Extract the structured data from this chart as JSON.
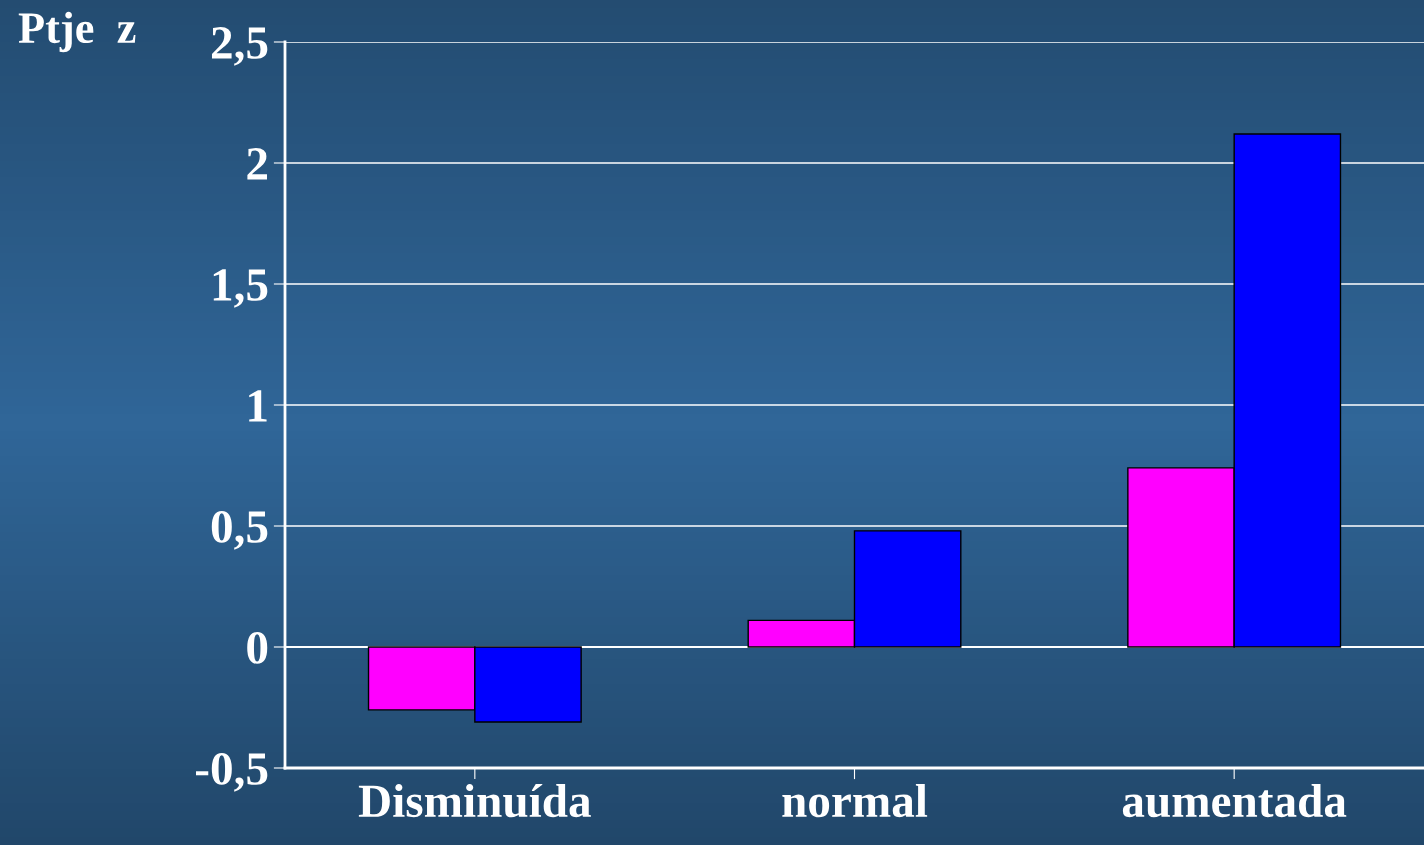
{
  "chart_data": {
    "type": "bar",
    "ylabel": "Ptje  z",
    "categories": [
      "Disminuída",
      "normal",
      "aumentada"
    ],
    "series": [
      {
        "color": "#ff00ff",
        "values": [
          -0.26,
          0.11,
          0.74
        ]
      },
      {
        "color": "#0000ff",
        "values": [
          -0.31,
          0.48,
          2.12
        ]
      }
    ],
    "ylim": [
      -0.5,
      2.5
    ],
    "yticks": [
      {
        "value": -0.5,
        "label": "-0,5"
      },
      0,
      {
        "value": 0.5,
        "label": "0,5"
      },
      1,
      {
        "value": 1.5,
        "label": "1,5"
      },
      2,
      {
        "value": 2.5,
        "label": "2,5"
      }
    ],
    "grid": "y",
    "legend": false
  }
}
